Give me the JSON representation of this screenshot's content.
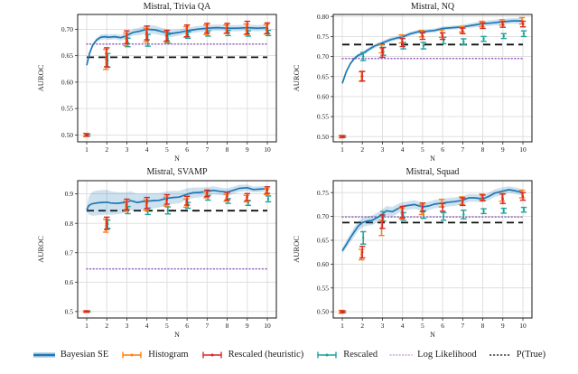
{
  "figure": {
    "background": "#ffffff",
    "shared_xlabel": "N",
    "shared_ylabel": "AUROC"
  },
  "colors": {
    "bayesian_se": "#1f77b4",
    "bayesian_se_band": "#1f77b4",
    "histogram": "#ff7f0e",
    "rescaled_heuristic": "#d62728",
    "rescaled": "#1ba39c",
    "log_likelihood": "#9467bd",
    "p_true": "#111111",
    "grid": "#dcdcdc",
    "spine": "#2b2b2b"
  },
  "legend": {
    "items": [
      {
        "label": "Bayesian SE",
        "type": "band-line",
        "color": "#1f77b4"
      },
      {
        "label": "Histogram",
        "type": "errorbar",
        "color": "#ff7f0e"
      },
      {
        "label": "Rescaled (heuristic)",
        "type": "errorbar",
        "color": "#d62728"
      },
      {
        "label": "Rescaled",
        "type": "errorbar",
        "color": "#1ba39c"
      },
      {
        "label": "Log Likelihood",
        "type": "dotted-line",
        "color": "#9467bd"
      },
      {
        "label": "P(True)",
        "type": "dashed-line",
        "color": "#111111"
      }
    ]
  },
  "chart_data": [
    {
      "type": "line",
      "title": "Mistral, Trivia QA",
      "xlabel": "N",
      "ylabel": "AUROC",
      "xlim": [
        0.55,
        10.45
      ],
      "ylim": [
        0.487,
        0.728
      ],
      "xticks": [
        1,
        2,
        3,
        4,
        5,
        6,
        7,
        8,
        9,
        10
      ],
      "yticks": [
        0.5,
        0.55,
        0.6,
        0.65,
        0.7
      ],
      "ytick_labels": [
        "0.50",
        "0.55",
        "0.60",
        "0.65",
        "0.70"
      ],
      "grid": true,
      "hlines": {
        "p_true": 0.647,
        "log_likelihood": 0.672
      },
      "bayesian_se": {
        "x": [
          1,
          1.15,
          1.3,
          1.5,
          1.7,
          1.9,
          2.1,
          2.4,
          2.7,
          3.0,
          3.3,
          3.6,
          4.0,
          4.4,
          4.8,
          5.2,
          5.6,
          6.0,
          6.5,
          7.0,
          7.5,
          8.0,
          8.5,
          9.0,
          9.5,
          10.0
        ],
        "y": [
          0.632,
          0.655,
          0.67,
          0.68,
          0.685,
          0.686,
          0.685,
          0.686,
          0.684,
          0.688,
          0.694,
          0.696,
          0.7,
          0.699,
          0.695,
          0.692,
          0.694,
          0.697,
          0.7,
          0.702,
          0.703,
          0.702,
          0.702,
          0.703,
          0.702,
          0.703
        ],
        "band": [
          0.003,
          0.004,
          0.004,
          0.004,
          0.005,
          0.005,
          0.005,
          0.005,
          0.005,
          0.006,
          0.006,
          0.007,
          0.008,
          0.008,
          0.007,
          0.007,
          0.006,
          0.006,
          0.006,
          0.006,
          0.006,
          0.006,
          0.006,
          0.006,
          0.006,
          0.006
        ]
      },
      "errorbars": {
        "n": [
          1,
          2,
          3,
          4,
          5,
          6,
          7,
          8,
          9,
          10
        ],
        "histogram": {
          "y": [
            0.5,
            0.643,
            0.681,
            0.689,
            0.686,
            0.695,
            0.699,
            0.7,
            0.7,
            0.7
          ],
          "err": [
            0.003,
            0.019,
            0.012,
            0.013,
            0.01,
            0.01,
            0.009,
            0.008,
            0.01,
            0.009
          ]
        },
        "rescaled_heuristic": {
          "y": [
            0.5,
            0.647,
            0.685,
            0.693,
            0.688,
            0.697,
            0.702,
            0.702,
            0.703,
            0.702
          ],
          "err": [
            0.002,
            0.018,
            0.012,
            0.013,
            0.01,
            0.011,
            0.009,
            0.009,
            0.012,
            0.01
          ]
        },
        "rescaled": {
          "y": [
            0.5,
            0.641,
            0.675,
            0.679,
            0.682,
            0.689,
            0.692,
            0.693,
            0.692,
            0.693
          ],
          "err": [
            0.002,
            0.013,
            0.008,
            0.011,
            0.008,
            0.006,
            0.005,
            0.005,
            0.005,
            0.005
          ]
        }
      }
    },
    {
      "type": "line",
      "title": "Mistral, NQ",
      "xlabel": "N",
      "ylabel": "AUROC",
      "xlim": [
        0.55,
        10.45
      ],
      "ylim": [
        0.487,
        0.805
      ],
      "xticks": [
        1,
        2,
        3,
        4,
        5,
        6,
        7,
        8,
        9,
        10
      ],
      "yticks": [
        0.5,
        0.55,
        0.6,
        0.65,
        0.7,
        0.75,
        0.8
      ],
      "ytick_labels": [
        "0.50",
        "0.55",
        "0.60",
        "0.65",
        "0.70",
        "0.75",
        "0.80"
      ],
      "grid": true,
      "hlines": {
        "p_true": 0.73,
        "log_likelihood": 0.695
      },
      "bayesian_se": {
        "x": [
          1,
          1.2,
          1.4,
          1.6,
          1.8,
          2.0,
          2.3,
          2.6,
          3.0,
          3.4,
          3.7,
          4.0,
          4.4,
          4.8,
          5.2,
          5.6,
          6.0,
          6.5,
          7.0,
          7.5,
          8.0,
          8.5,
          9.0,
          9.5,
          10.0
        ],
        "y": [
          0.633,
          0.662,
          0.682,
          0.695,
          0.703,
          0.707,
          0.717,
          0.726,
          0.734,
          0.742,
          0.746,
          0.749,
          0.757,
          0.762,
          0.763,
          0.765,
          0.77,
          0.772,
          0.774,
          0.778,
          0.782,
          0.784,
          0.787,
          0.789,
          0.789
        ],
        "band": [
          0.003,
          0.004,
          0.004,
          0.004,
          0.005,
          0.005,
          0.005,
          0.005,
          0.005,
          0.006,
          0.005,
          0.005,
          0.005,
          0.005,
          0.005,
          0.005,
          0.005,
          0.005,
          0.005,
          0.006,
          0.007,
          0.007,
          0.007,
          0.007,
          0.007
        ]
      },
      "errorbars": {
        "n": [
          1,
          2,
          3,
          4,
          5,
          6,
          7,
          8,
          9,
          10
        ],
        "histogram": {
          "y": [
            0.5,
            0.65,
            0.719,
            0.744,
            0.757,
            0.757,
            0.768,
            0.781,
            0.785,
            0.789
          ],
          "err": [
            0.003,
            0.012,
            0.01,
            0.01,
            0.008,
            0.009,
            0.007,
            0.007,
            0.007,
            0.008
          ]
        },
        "rescaled_heuristic": {
          "y": [
            0.5,
            0.651,
            0.71,
            0.735,
            0.751,
            0.751,
            0.764,
            0.777,
            0.78,
            0.781
          ],
          "err": [
            0.002,
            0.012,
            0.012,
            0.01,
            0.008,
            0.008,
            0.007,
            0.007,
            0.007,
            0.007
          ]
        },
        "rescaled": {
          "y": [
            0.5,
            0.7,
            0.713,
            0.727,
            0.727,
            0.74,
            0.737,
            0.744,
            0.751,
            0.757
          ],
          "err": [
            0.002,
            0.01,
            0.01,
            0.008,
            0.008,
            0.008,
            0.007,
            0.006,
            0.006,
            0.007
          ]
        }
      }
    },
    {
      "type": "line",
      "title": "Mistral, SVAMP",
      "xlabel": "N",
      "ylabel": "AUROC",
      "xlim": [
        0.55,
        10.45
      ],
      "ylim": [
        0.478,
        0.945
      ],
      "xticks": [
        1,
        2,
        3,
        4,
        5,
        6,
        7,
        8,
        9,
        10
      ],
      "yticks": [
        0.5,
        0.6,
        0.7,
        0.8,
        0.9
      ],
      "ytick_labels": [
        "0.5",
        "0.6",
        "0.7",
        "0.8",
        "0.9"
      ],
      "grid": true,
      "hlines": {
        "p_true": 0.843,
        "log_likelihood": 0.645
      },
      "bayesian_se": {
        "x": [
          1,
          1.1,
          1.25,
          1.4,
          1.6,
          1.8,
          2.0,
          2.2,
          2.5,
          2.8,
          3.0,
          3.2,
          3.5,
          3.8,
          4.0,
          4.3,
          4.6,
          5.0,
          5.3,
          5.6,
          6.0,
          6.3,
          6.6,
          7.0,
          7.3,
          7.6,
          8.0,
          8.3,
          8.6,
          9.0,
          9.3,
          9.6,
          10.0
        ],
        "y": [
          0.845,
          0.86,
          0.866,
          0.868,
          0.87,
          0.871,
          0.872,
          0.869,
          0.868,
          0.87,
          0.872,
          0.877,
          0.871,
          0.874,
          0.875,
          0.877,
          0.878,
          0.885,
          0.888,
          0.889,
          0.899,
          0.904,
          0.905,
          0.908,
          0.912,
          0.909,
          0.906,
          0.912,
          0.919,
          0.921,
          0.915,
          0.916,
          0.918
        ],
        "band": [
          0.005,
          0.03,
          0.04,
          0.042,
          0.042,
          0.042,
          0.042,
          0.04,
          0.038,
          0.036,
          0.034,
          0.032,
          0.03,
          0.028,
          0.027,
          0.026,
          0.025,
          0.024,
          0.022,
          0.021,
          0.02,
          0.018,
          0.017,
          0.015,
          0.014,
          0.013,
          0.013,
          0.012,
          0.012,
          0.011,
          0.01,
          0.01,
          0.01
        ]
      },
      "errorbars": {
        "n": [
          1,
          2,
          3,
          4,
          5,
          6,
          7,
          8,
          9,
          10
        ],
        "histogram": {
          "y": [
            0.5,
            0.792,
            0.858,
            0.862,
            0.874,
            0.869,
            0.897,
            0.887,
            0.884,
            0.908
          ],
          "err": [
            0.003,
            0.022,
            0.017,
            0.018,
            0.015,
            0.014,
            0.01,
            0.012,
            0.011,
            0.01
          ]
        },
        "rescaled_heuristic": {
          "y": [
            0.5,
            0.8,
            0.864,
            0.869,
            0.881,
            0.877,
            0.902,
            0.892,
            0.889,
            0.913
          ],
          "err": [
            0.002,
            0.021,
            0.018,
            0.019,
            0.016,
            0.015,
            0.011,
            0.013,
            0.012,
            0.011
          ]
        },
        "rescaled": {
          "y": [
            0.5,
            0.797,
            0.845,
            0.841,
            0.844,
            0.861,
            0.887,
            0.876,
            0.869,
            0.883
          ],
          "err": [
            0.002,
            0.014,
            0.012,
            0.011,
            0.012,
            0.01,
            0.008,
            0.008,
            0.008,
            0.01
          ]
        }
      }
    },
    {
      "type": "line",
      "title": "Mistral, Squad",
      "xlabel": "N",
      "ylabel": "AUROC",
      "xlim": [
        0.55,
        10.45
      ],
      "ylim": [
        0.487,
        0.775
      ],
      "xticks": [
        1,
        2,
        3,
        4,
        5,
        6,
        7,
        8,
        9,
        10
      ],
      "yticks": [
        0.5,
        0.55,
        0.6,
        0.65,
        0.7,
        0.75
      ],
      "ytick_labels": [
        "0.50",
        "0.55",
        "0.60",
        "0.65",
        "0.70",
        "0.75"
      ],
      "grid": true,
      "hlines": {
        "p_true": 0.687,
        "log_likelihood": 0.699
      },
      "bayesian_se": {
        "x": [
          1,
          1.2,
          1.4,
          1.6,
          1.8,
          2.0,
          2.2,
          2.5,
          2.8,
          3.0,
          3.2,
          3.5,
          3.8,
          4.0,
          4.3,
          4.6,
          5.0,
          5.3,
          5.6,
          6.0,
          6.3,
          6.6,
          7.0,
          7.3,
          7.6,
          8.0,
          8.3,
          8.6,
          9.0,
          9.3,
          9.6,
          10.0
        ],
        "y": [
          0.628,
          0.641,
          0.655,
          0.668,
          0.68,
          0.687,
          0.69,
          0.692,
          0.699,
          0.705,
          0.712,
          0.71,
          0.717,
          0.721,
          0.723,
          0.725,
          0.72,
          0.722,
          0.726,
          0.728,
          0.73,
          0.731,
          0.734,
          0.739,
          0.739,
          0.737,
          0.742,
          0.749,
          0.753,
          0.756,
          0.754,
          0.75
        ],
        "band": [
          0.006,
          0.008,
          0.009,
          0.01,
          0.01,
          0.01,
          0.01,
          0.01,
          0.01,
          0.01,
          0.01,
          0.01,
          0.01,
          0.009,
          0.009,
          0.009,
          0.009,
          0.009,
          0.009,
          0.009,
          0.009,
          0.009,
          0.009,
          0.008,
          0.008,
          0.008,
          0.008,
          0.008,
          0.008,
          0.007,
          0.007,
          0.007
        ]
      },
      "errorbars": {
        "n": [
          1,
          2,
          3,
          4,
          5,
          6,
          7,
          8,
          9,
          10
        ],
        "histogram": {
          "y": [
            0.5,
            0.62,
            0.676,
            0.706,
            0.714,
            0.728,
            0.733,
            0.741,
            0.74,
            0.747
          ],
          "err": [
            0.003,
            0.011,
            0.016,
            0.011,
            0.01,
            0.008,
            0.008,
            0.006,
            0.008,
            0.008
          ]
        },
        "rescaled_heuristic": {
          "y": [
            0.5,
            0.625,
            0.689,
            0.709,
            0.719,
            0.719,
            0.731,
            0.739,
            0.737,
            0.742
          ],
          "err": [
            0.002,
            0.012,
            0.014,
            0.012,
            0.009,
            0.008,
            0.008,
            0.006,
            0.01,
            0.008
          ]
        },
        "rescaled": {
          "y": [
            0.5,
            0.655,
            0.7,
            0.7,
            0.704,
            0.7,
            0.704,
            0.711,
            0.712,
            0.714
          ],
          "err": [
            0.002,
            0.013,
            0.01,
            0.008,
            0.008,
            0.008,
            0.009,
            0.005,
            0.005,
            0.005
          ]
        }
      }
    }
  ]
}
